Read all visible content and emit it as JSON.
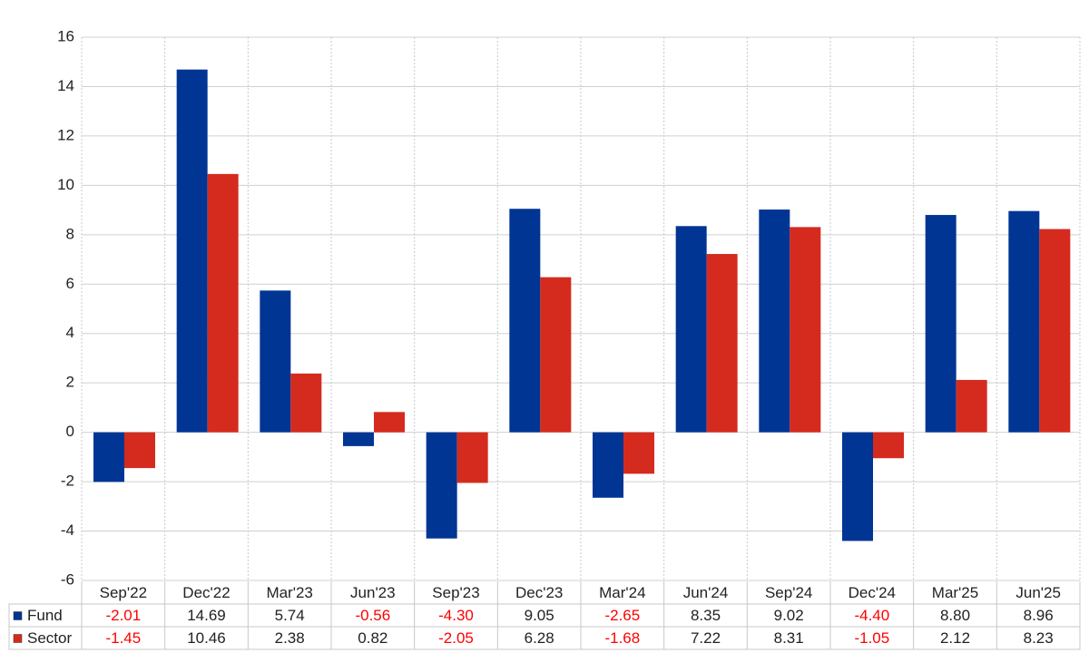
{
  "chart_data": {
    "type": "bar",
    "categories": [
      "Sep'22",
      "Dec'22",
      "Mar'23",
      "Jun'23",
      "Sep'23",
      "Dec'23",
      "Mar'24",
      "Jun'24",
      "Sep'24",
      "Dec'24",
      "Mar'25",
      "Jun'25"
    ],
    "series": [
      {
        "name": "Fund",
        "color": "#003594",
        "values": [
          -2.01,
          14.69,
          5.74,
          -0.56,
          -4.3,
          9.05,
          -2.65,
          8.35,
          9.02,
          -4.4,
          8.8,
          8.96
        ],
        "value_labels": [
          "-2.01",
          "14.69",
          "5.74",
          "-0.56",
          "-4.30",
          "9.05",
          "-2.65",
          "8.35",
          "9.02",
          "-4.40",
          "8.80",
          "8.96"
        ]
      },
      {
        "name": "Sector",
        "color": "#d52b1e",
        "values": [
          -1.45,
          10.46,
          2.38,
          0.82,
          -2.05,
          6.28,
          -1.68,
          7.22,
          8.31,
          -1.05,
          2.12,
          8.23
        ],
        "value_labels": [
          "-1.45",
          "10.46",
          "2.38",
          "0.82",
          "-2.05",
          "6.28",
          "-1.68",
          "7.22",
          "8.31",
          "-1.05",
          "2.12",
          "8.23"
        ]
      }
    ],
    "ylim": [
      -6,
      16
    ],
    "yticks": [
      -6,
      -4,
      -2,
      0,
      2,
      4,
      6,
      8,
      10,
      12,
      14,
      16
    ],
    "grid": true
  }
}
